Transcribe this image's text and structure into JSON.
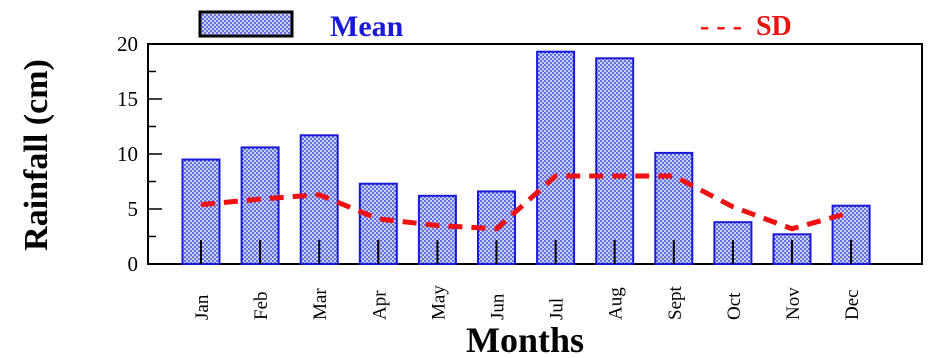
{
  "chart_data": {
    "type": "bar",
    "categories": [
      "Jan",
      "Feb",
      "Mar",
      "Apr",
      "May",
      "Jun",
      "Jul",
      "Aug",
      "Sept",
      "Oct",
      "Nov",
      "Dec"
    ],
    "series": [
      {
        "name": "Mean",
        "type": "bar",
        "values": [
          9.5,
          10.6,
          11.7,
          7.3,
          6.2,
          6.6,
          19.3,
          18.7,
          10.1,
          3.8,
          2.7,
          5.3
        ]
      },
      {
        "name": "SD",
        "type": "line",
        "values": [
          5.4,
          5.9,
          6.3,
          4.1,
          3.5,
          3.2,
          8.0,
          8.0,
          8.0,
          5.2,
          3.2,
          4.7
        ]
      }
    ],
    "xlabel": "Months",
    "ylabel": "Rainfall (cm)",
    "ylim": [
      0,
      20
    ],
    "yticks": [
      "0",
      "5",
      "10",
      "15",
      "20"
    ],
    "legend": {
      "mean": "Mean",
      "sd": "- - -  SD",
      "placement": "top"
    },
    "colors": {
      "bar_fill": "#c8d2f5",
      "bar_dots": "#1f2bd8",
      "bar_edge": "#1a1ad6",
      "sd_line": "#ee1111"
    },
    "grid": false
  }
}
